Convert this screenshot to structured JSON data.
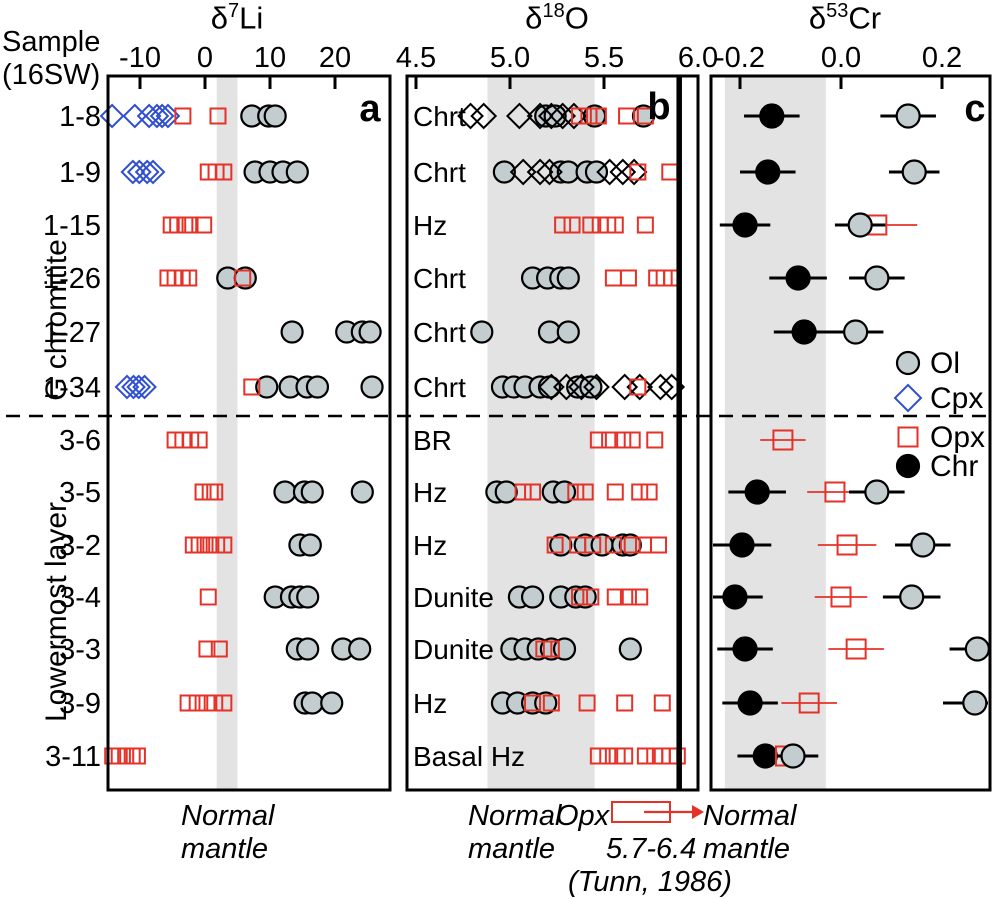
{
  "ui": {
    "header": {
      "line1": "Sample",
      "line2": "(16SW)"
    },
    "axis_titles": {
      "a": {
        "base": "δ",
        "sup": "7",
        "rest": "Li"
      },
      "b": {
        "base": "δ",
        "sup": "18",
        "rest": "O"
      },
      "c": {
        "base": "δ",
        "sup": "53",
        "rest": "Cr"
      }
    },
    "panel_letters": {
      "a": "a",
      "b": "b",
      "c": "c"
    },
    "group_labels": {
      "top": "G chromitite",
      "bottom": "Lowermost layer"
    },
    "legend": {
      "ol": "Ol",
      "cpx": "Cpx",
      "opx": "Opx",
      "chr": "Chr"
    },
    "annotations": {
      "a_line1": "Normal",
      "a_line2": "mantle",
      "b_line1": "Normal",
      "b_line2": "mantle",
      "b_opx": "Opx",
      "b_range": "5.7-6.4",
      "b_ref": "(Tunn, 1986)",
      "c_line1": "Normal",
      "c_line2": "mantle"
    }
  },
  "colors": {
    "red": "#e53228",
    "blue": "#3050d0",
    "gray_fill": "#c3cdd0",
    "band": "#e3e3e3",
    "black": "#000000"
  },
  "chart_data": {
    "type": "scatter",
    "orientation": "horizontal-rows",
    "samples": [
      "1-8",
      "1-9",
      "1-15",
      "1-26",
      "1-27",
      "1-34",
      "3-6",
      "3-5",
      "3-2",
      "3-4",
      "3-3",
      "3-9",
      "3-11"
    ],
    "groups": [
      {
        "label": "G chromitite",
        "samples": [
          "1-8",
          "1-9",
          "1-15",
          "1-26",
          "1-27",
          "1-34"
        ]
      },
      {
        "label": "Lowermost layer",
        "samples": [
          "3-6",
          "3-5",
          "3-2",
          "3-4",
          "3-3",
          "3-9",
          "3-11"
        ]
      }
    ],
    "legend": [
      {
        "key": "ol",
        "label": "Ol",
        "symbol": "gray-circle"
      },
      {
        "key": "cpx",
        "label": "Cpx",
        "symbol": "blue-open-diamond"
      },
      {
        "key": "opx",
        "label": "Opx",
        "symbol": "red-open-square"
      },
      {
        "key": "chr",
        "label": "Chr",
        "symbol": "black-circle"
      }
    ],
    "panels": [
      {
        "id": "a",
        "xlabel": "δ7Li",
        "xlim": [
          -15,
          28.5
        ],
        "ticks": [
          -10,
          0,
          10,
          20
        ],
        "tick_labels": [
          "-10",
          "0",
          "10",
          "20"
        ],
        "normal_mantle_band": [
          1.8,
          5.0
        ],
        "rows": [
          {
            "sample": "1-8",
            "cpx": [
              -14.3,
              -10.8,
              -8.6,
              -7.4,
              -6.6,
              -5.7
            ],
            "opx": [
              -3.4,
              2.0
            ],
            "ol": [
              7.2,
              9.8,
              10.8
            ]
          },
          {
            "sample": "1-9",
            "cpx": [
              -11.1,
              -10.1,
              -8.9,
              -8.0
            ],
            "opx": [
              0.5,
              1.7,
              2.9
            ],
            "ol": [
              7.7,
              10.0,
              12.0,
              14.2
            ]
          },
          {
            "sample": "1-15",
            "opx": [
              -5.2,
              -4.2,
              -3.1,
              -2.3,
              -0.2
            ]
          },
          {
            "sample": "1-26",
            "opx": [
              -5.7,
              -4.6,
              -3.5,
              -2.5,
              5.8
            ],
            "ol": [
              3.5,
              6.2
            ]
          },
          {
            "sample": "1-27",
            "ol": [
              13.4,
              21.8,
              24.2,
              25.4
            ]
          },
          {
            "sample": "1-34",
            "cpx": [
              -12.0,
              -11.0,
              -10.2,
              -9.3
            ],
            "opx": [
              7.2
            ],
            "ol": [
              9.5,
              13.1,
              15.7,
              17.3,
              25.7
            ]
          },
          {
            "sample": "3-6",
            "opx": [
              -4.6,
              -3.4,
              -2.2,
              -0.9
            ]
          },
          {
            "sample": "3-5",
            "opx": [
              -0.3,
              0.8,
              1.5
            ],
            "ol": [
              12.3,
              15.3,
              16.5,
              24.2
            ]
          },
          {
            "sample": "3-2",
            "opx": [
              -1.8,
              -0.9,
              0.0,
              0.9,
              1.8,
              2.9
            ],
            "ol": [
              14.6,
              16.2
            ]
          },
          {
            "sample": "3-4",
            "opx": [
              0.5
            ],
            "ol": [
              10.8,
              13.3,
              14.6,
              15.8
            ]
          },
          {
            "sample": "3-3",
            "opx": [
              0.3,
              2.2
            ],
            "ol": [
              14.2,
              15.8,
              21.2,
              23.8
            ]
          },
          {
            "sample": "3-9",
            "opx": [
              -2.6,
              -1.2,
              0.3,
              1.5,
              2.9
            ],
            "ol": [
              15.4,
              16.5,
              19.5
            ]
          },
          {
            "sample": "3-11",
            "opx": [
              -14.2,
              -13.2,
              -12.2,
              -11.2,
              -10.4
            ]
          }
        ]
      },
      {
        "id": "b",
        "xlabel": "δ18O",
        "xlim": [
          4.45,
          6.0
        ],
        "ticks": [
          4.5,
          5.0,
          5.5,
          6.0
        ],
        "tick_labels": [
          "4.5",
          "5.0",
          "5.5",
          "6.0"
        ],
        "normal_mantle_band": [
          4.88,
          5.45
        ],
        "vline": 5.9,
        "rows": [
          {
            "sample": "1-8",
            "rock": "Chrt",
            "ol": [
              5.19,
              5.24,
              5.45,
              5.71
            ],
            "cpx": [
              4.79,
              4.86,
              5.05,
              5.16,
              5.22,
              5.28,
              5.34
            ],
            "opx": [
              5.37,
              5.42,
              5.47,
              5.62,
              5.72
            ]
          },
          {
            "sample": "1-9",
            "rock": "Chrt",
            "ol": [
              4.97,
              5.27,
              5.31,
              5.41,
              5.46
            ],
            "cpx": [
              5.07,
              5.16,
              5.21,
              5.53,
              5.6,
              5.66
            ],
            "opx": [
              5.68,
              5.85
            ]
          },
          {
            "sample": "1-15",
            "rock": "Hz",
            "opx": [
              5.28,
              5.33,
              5.43,
              5.48,
              5.52,
              5.56,
              5.72
            ]
          },
          {
            "sample": "1-26",
            "rock": "Chrt",
            "ol": [
              5.12,
              5.2,
              5.27,
              5.31
            ],
            "opx": [
              5.55,
              5.63,
              5.78,
              5.82,
              5.86
            ]
          },
          {
            "sample": "1-27",
            "rock": "Chrt",
            "ol": [
              4.85,
              5.21,
              5.31
            ]
          },
          {
            "sample": "1-34",
            "rock": "Chrt",
            "ol": [
              4.96,
              5.02,
              5.08,
              5.16,
              5.21,
              5.36,
              5.43
            ],
            "cpx": [
              5.22,
              5.3,
              5.38,
              5.46,
              5.61,
              5.69,
              5.8,
              5.86
            ],
            "opx": [
              5.68
            ]
          },
          {
            "sample": "3-6",
            "rock": "BR",
            "opx": [
              5.47,
              5.53,
              5.6,
              5.65,
              5.77
            ]
          },
          {
            "sample": "3-5",
            "rock": "Hz",
            "ol": [
              4.93,
              4.98,
              5.23,
              5.29
            ],
            "opx": [
              5.07,
              5.12,
              5.35,
              5.4,
              5.56,
              5.69,
              5.74
            ]
          },
          {
            "sample": "3-2",
            "rock": "Hz",
            "ol": [
              5.27,
              5.4,
              5.49,
              5.6,
              5.64
            ],
            "opx": [
              5.24,
              5.36,
              5.44,
              5.55,
              5.65,
              5.71,
              5.79
            ]
          },
          {
            "sample": "3-4",
            "rock": "Dunite",
            "ol": [
              5.05,
              5.12,
              5.27,
              5.35,
              5.4
            ],
            "opx": [
              5.37,
              5.43,
              5.56,
              5.63,
              5.69
            ]
          },
          {
            "sample": "3-3",
            "rock": "Dunite",
            "ol": [
              5.01,
              5.08,
              5.15,
              5.22,
              5.29,
              5.64
            ],
            "opx": [
              5.18,
              5.22
            ]
          },
          {
            "sample": "3-9",
            "rock": "Hz",
            "ol": [
              4.96,
              5.04,
              5.12,
              5.19
            ],
            "opx": [
              5.12,
              5.22,
              5.41,
              5.61,
              5.81
            ]
          },
          {
            "sample": "3-11",
            "rock": "Basal Hz",
            "opx": [
              5.47,
              5.52,
              5.57,
              5.61,
              5.72,
              5.77,
              5.81,
              5.85,
              5.89
            ]
          }
        ]
      },
      {
        "id": "c",
        "xlabel": "δ53Cr",
        "xlim": [
          -0.257,
          0.295
        ],
        "ticks": [
          -0.2,
          0.0,
          0.2
        ],
        "tick_labels": [
          "-0.2",
          "0.0",
          "0.2"
        ],
        "normal_mantle_band": [
          -0.23,
          -0.03
        ],
        "rows": [
          {
            "sample": "1-8",
            "chr": {
              "v": -0.137,
              "e": 0.055
            },
            "ol": {
              "v": 0.133,
              "e": 0.055
            }
          },
          {
            "sample": "1-9",
            "chr": {
              "v": -0.145,
              "e": 0.055
            },
            "ol": {
              "v": 0.145,
              "e": 0.05
            }
          },
          {
            "sample": "1-15",
            "chr": {
              "v": -0.19,
              "e": 0.05
            },
            "ol": {
              "v": 0.038,
              "e": 0.05
            },
            "opx": {
              "v": 0.071,
              "e": 0.08
            }
          },
          {
            "sample": "1-26",
            "chr": {
              "v": -0.085,
              "e": 0.057
            },
            "ol": {
              "v": 0.071,
              "e": 0.055
            }
          },
          {
            "sample": "1-27",
            "chr": {
              "v": -0.073,
              "e": 0.06
            },
            "ol": {
              "v": 0.029,
              "e": 0.055
            }
          },
          {
            "sample": "1-34"
          },
          {
            "sample": "3-6",
            "opx": {
              "v": -0.115,
              "e": 0.045
            }
          },
          {
            "sample": "3-5",
            "chr": {
              "v": -0.166,
              "e": 0.057
            },
            "opx": {
              "v": -0.012,
              "e": 0.055
            },
            "ol": {
              "v": 0.071,
              "e": 0.055
            }
          },
          {
            "sample": "3-2",
            "chr": {
              "v": -0.196,
              "e": 0.058
            },
            "opx": {
              "v": 0.012,
              "e": 0.058
            },
            "ol": {
              "v": 0.162,
              "e": 0.055
            }
          },
          {
            "sample": "3-4",
            "chr": {
              "v": -0.21,
              "e": 0.055
            },
            "opx": {
              "v": 0.0,
              "e": 0.052
            },
            "ol": {
              "v": 0.14,
              "e": 0.057
            }
          },
          {
            "sample": "3-3",
            "chr": {
              "v": -0.19,
              "e": 0.055
            },
            "opx": {
              "v": 0.03,
              "e": 0.055
            },
            "ol": {
              "v": 0.27,
              "e": 0.055
            }
          },
          {
            "sample": "3-9",
            "chr": {
              "v": -0.18,
              "e": 0.055
            },
            "opx": {
              "v": -0.063,
              "e": 0.055
            },
            "ol": {
              "v": 0.265,
              "e": 0.063
            }
          },
          {
            "sample": "3-11",
            "chr": {
              "v": -0.15,
              "e": 0.055
            },
            "opx": {
              "v": -0.11,
              "e": 0.035
            },
            "ol": {
              "v": -0.095,
              "e": 0.05
            }
          }
        ]
      }
    ]
  }
}
